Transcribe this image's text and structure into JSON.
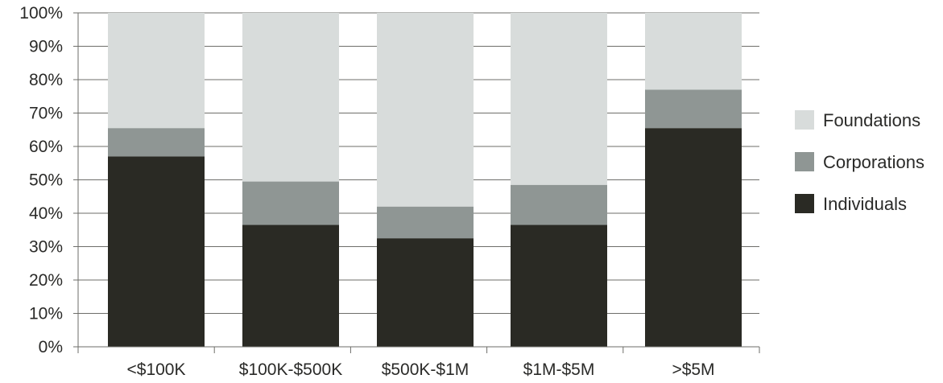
{
  "chart_data": {
    "type": "bar",
    "stacked": true,
    "title": "",
    "xlabel": "",
    "ylabel": "",
    "ylim": [
      0,
      100
    ],
    "yticks": [
      "0%",
      "10%",
      "20%",
      "30%",
      "40%",
      "50%",
      "60%",
      "70%",
      "80%",
      "90%",
      "100%"
    ],
    "grid": true,
    "legend_position": "right",
    "categories": [
      "<$100K",
      "$100K-$500K",
      "$500K-$1M",
      "$1M-$5M",
      ">$5M"
    ],
    "series": [
      {
        "name": "Individuals",
        "color": "#2a2a24",
        "values": [
          57,
          36.5,
          32.5,
          36.5,
          65.5
        ]
      },
      {
        "name": "Corporations",
        "color": "#8f9694",
        "values": [
          8.5,
          13,
          9.5,
          12,
          11.5
        ]
      },
      {
        "name": "Foundations",
        "color": "#d8dcdb",
        "values": [
          34.5,
          50.5,
          58,
          51.5,
          23
        ]
      }
    ],
    "legend": [
      "Foundations",
      "Corporations",
      "Individuals"
    ]
  }
}
